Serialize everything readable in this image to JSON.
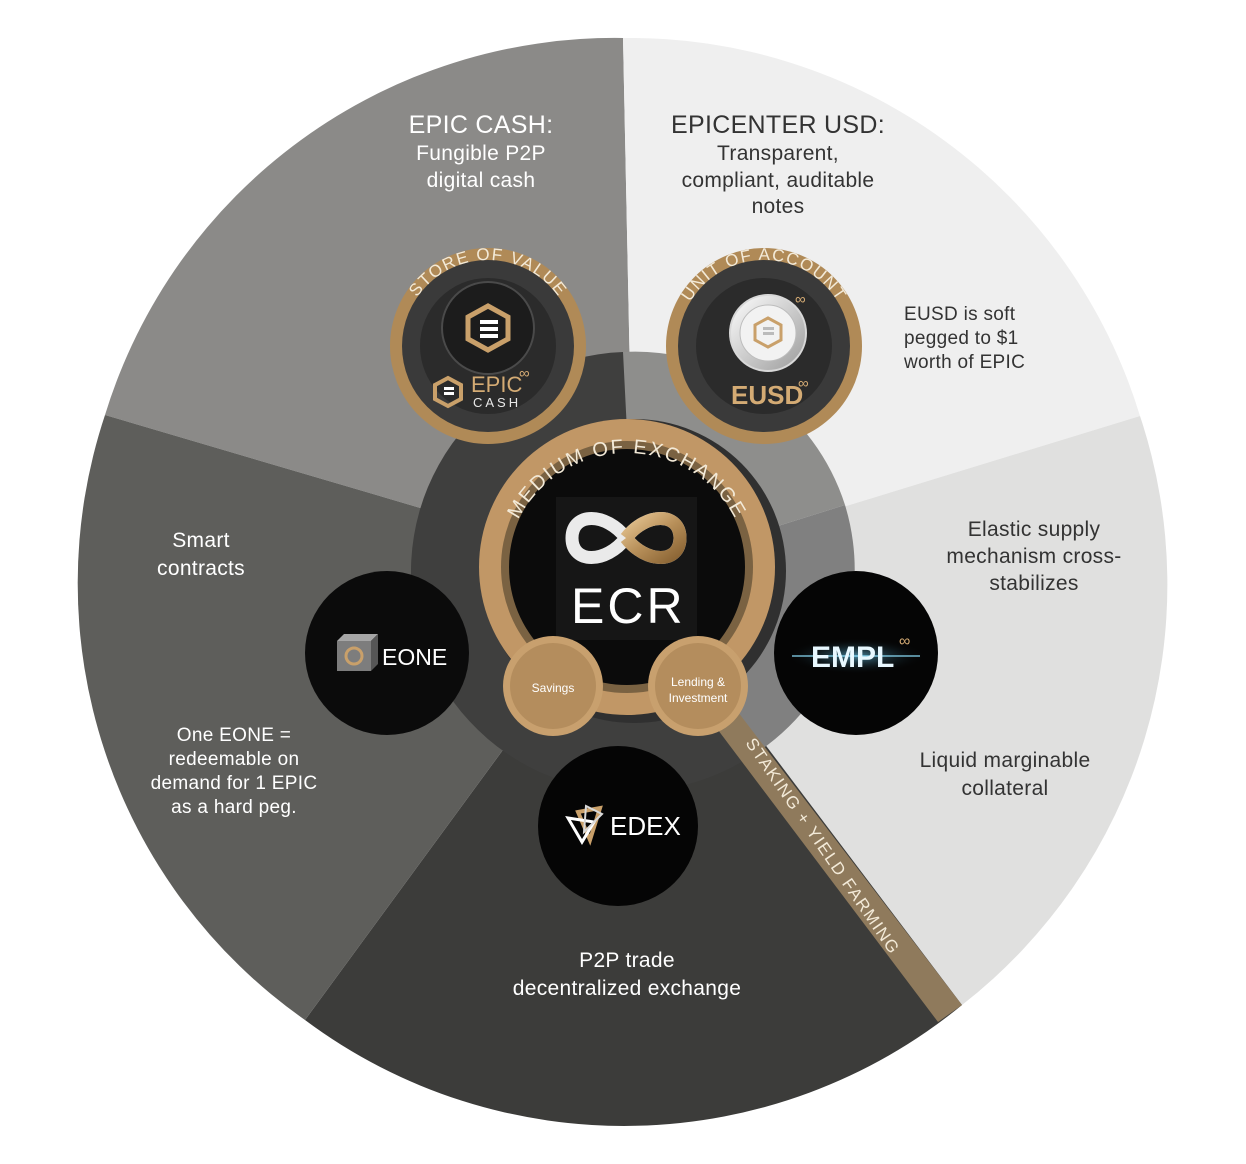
{
  "segments": {
    "epic_cash": {
      "title": "EPIC CASH:",
      "lines": [
        "Fungible P2P",
        "digital cash"
      ]
    },
    "epicenter_usd": {
      "title": "EPICENTER USD:",
      "lines": [
        "Transparent,",
        "compliant, auditable",
        "notes"
      ]
    },
    "eusd_note": {
      "lines": [
        "EUSD is soft",
        "pegged to $1",
        "worth of EPIC"
      ]
    },
    "empl": {
      "lines": [
        "Elastic supply",
        "mechanism cross-",
        "stabilizes"
      ]
    },
    "empl_collateral": {
      "lines": [
        "Liquid marginable",
        "collateral"
      ]
    },
    "edex": {
      "lines": [
        "P2P trade",
        "decentralized exchange"
      ]
    },
    "eone": {
      "lines": [
        "One EONE =",
        "redeemable on",
        "demand for 1 EPIC",
        "as a hard peg."
      ]
    },
    "smart": {
      "lines": [
        "Smart",
        "contracts"
      ]
    }
  },
  "arc_labels": {
    "store_of_value": "STORE OF VALUE",
    "unit_of_account": "UNIT OF ACCOUNT",
    "medium_of_exchange": "MEDIUM OF EXCHANGE",
    "staking": "STAKING + YIELD FARMING"
  },
  "logos": {
    "epic_cash": {
      "word": "EPIC",
      "sub": "CASH",
      "sup": "∞"
    },
    "eusd": {
      "word": "EUSD",
      "sup": "∞"
    },
    "ecr": {
      "word": "ECR"
    },
    "eone": {
      "word": "EONE"
    },
    "empl": {
      "word": "EMPL",
      "sup": "∞"
    },
    "edex": {
      "word": "EDEX"
    }
  },
  "sub_circles": {
    "savings": "Savings",
    "lending": [
      "Lending &",
      "Investment"
    ]
  },
  "colors": {
    "gold": "#b8905a",
    "gold_light": "#d4ab74",
    "seg_epic_cash": "#8b8a88",
    "seg_eusd": "#efefef",
    "seg_empl": "#e0e0df",
    "seg_edex": "#3c3c3a",
    "seg_eone": "#5e5e5b",
    "ring_dark": "#3f3f3e",
    "ring_mid": "#7d7d7c"
  }
}
